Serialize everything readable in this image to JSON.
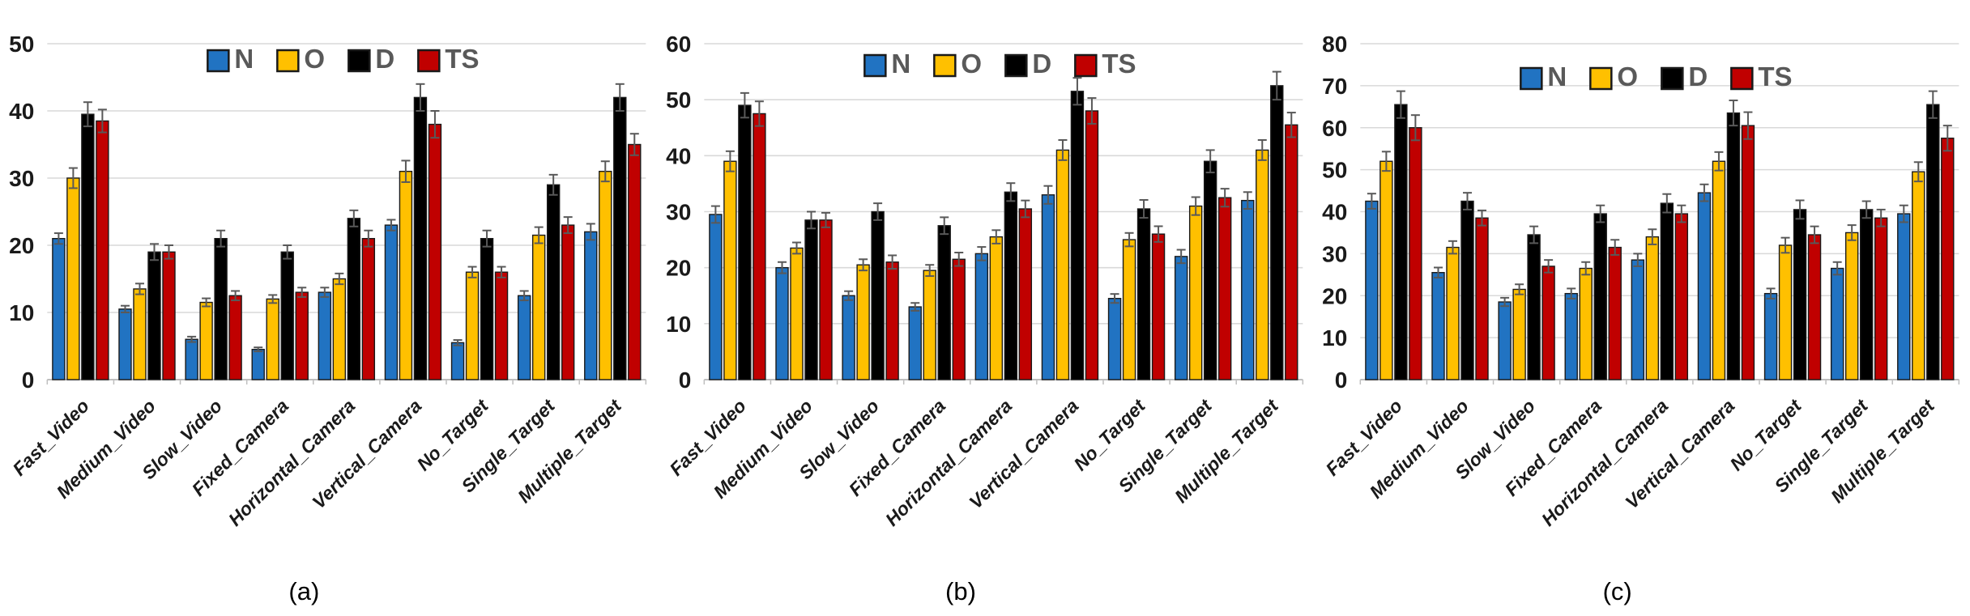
{
  "legend": {
    "labels": [
      "N",
      "O",
      "D",
      "TS"
    ]
  },
  "colors": {
    "N": "#2173C2",
    "O": "#FFC000",
    "D": "#000000",
    "TS": "#C00000",
    "grid": "#D9D9D9",
    "axis": "#BFBFBF",
    "error_bar": "#595959",
    "legend_text": "#595959",
    "tick_text": "#1A1A1A"
  },
  "chart_data": [
    {
      "id": "a",
      "type": "bar",
      "caption": "(a)",
      "ylim": [
        0,
        50
      ],
      "ytick_step": 10,
      "yticks": [
        0,
        10,
        20,
        30,
        40,
        50
      ],
      "grid": true,
      "legend_position": "top-center",
      "categories": [
        "Fast_Video",
        "Medium_Video",
        "Slow_Video",
        "Fixed_Camera",
        "Horizontal_Camera",
        "Vertical_Camera",
        "No_Target",
        "Single_Target",
        "Multiple_Target"
      ],
      "series": [
        {
          "name": "N",
          "color": "#2173C2",
          "values": [
            21,
            10.5,
            6,
            4.5,
            13,
            23,
            5.5,
            12.5,
            22
          ],
          "errors": [
            0.8,
            0.5,
            0.4,
            0.3,
            0.7,
            0.8,
            0.4,
            0.7,
            1.2
          ]
        },
        {
          "name": "O",
          "color": "#FFC000",
          "values": [
            30,
            13.5,
            11.5,
            12,
            15,
            31,
            16,
            21.5,
            31
          ],
          "errors": [
            1.5,
            0.8,
            0.6,
            0.6,
            0.8,
            1.6,
            0.8,
            1.2,
            1.5
          ]
        },
        {
          "name": "D",
          "color": "#000000",
          "values": [
            39.5,
            19,
            21,
            19,
            24,
            42,
            21,
            29,
            42
          ],
          "errors": [
            1.8,
            1.2,
            1.2,
            1.0,
            1.2,
            2.0,
            1.2,
            1.5,
            2.0
          ]
        },
        {
          "name": "TS",
          "color": "#C00000",
          "values": [
            38.5,
            19,
            12.5,
            13,
            21,
            38,
            16,
            23,
            35
          ],
          "errors": [
            1.7,
            1.0,
            0.7,
            0.7,
            1.2,
            2.0,
            0.8,
            1.2,
            1.6
          ]
        }
      ]
    },
    {
      "id": "b",
      "type": "bar",
      "caption": "(b)",
      "ylim": [
        0,
        60
      ],
      "ytick_step": 10,
      "yticks": [
        0,
        10,
        20,
        30,
        40,
        50,
        60
      ],
      "grid": true,
      "legend_position": "top-center",
      "categories": [
        "Fast_Video",
        "Medium_Video",
        "Slow_Video",
        "Fixed_Camera",
        "Horizontal_Camera",
        "Vertical_Camera",
        "No_Target",
        "Single_Target",
        "Multiple_Target"
      ],
      "series": [
        {
          "name": "N",
          "color": "#2173C2",
          "values": [
            29.5,
            20,
            15,
            13,
            22.5,
            33,
            14.5,
            22,
            32
          ],
          "errors": [
            1.5,
            1.0,
            0.8,
            0.7,
            1.2,
            1.6,
            0.8,
            1.2,
            1.5
          ]
        },
        {
          "name": "O",
          "color": "#FFC000",
          "values": [
            39,
            23.5,
            20.5,
            19.5,
            25.5,
            41,
            25,
            31,
            41
          ],
          "errors": [
            1.8,
            1.0,
            1.0,
            1.0,
            1.2,
            1.8,
            1.2,
            1.6,
            1.8
          ]
        },
        {
          "name": "D",
          "color": "#000000",
          "values": [
            49,
            28.5,
            30,
            27.5,
            33.5,
            51.5,
            30.5,
            39,
            52.5
          ],
          "errors": [
            2.2,
            1.5,
            1.5,
            1.5,
            1.6,
            2.4,
            1.6,
            2.0,
            2.5
          ]
        },
        {
          "name": "TS",
          "color": "#C00000",
          "values": [
            47.5,
            28.5,
            21,
            21.5,
            30.5,
            48,
            26,
            32.5,
            45.5
          ],
          "errors": [
            2.2,
            1.3,
            1.2,
            1.2,
            1.5,
            2.3,
            1.4,
            1.6,
            2.2
          ]
        }
      ]
    },
    {
      "id": "c",
      "type": "bar",
      "caption": "(c)",
      "ylim": [
        0,
        80
      ],
      "ytick_step": 10,
      "yticks": [
        0,
        10,
        20,
        30,
        40,
        50,
        60,
        70,
        80
      ],
      "grid": true,
      "legend_position": "top-center",
      "categories": [
        "Fast_Video",
        "Medium_Video",
        "Slow_Video",
        "Fixed_Camera",
        "Horizontal_Camera",
        "Vertical_Camera",
        "No_Target",
        "Single_Target",
        "Multiple_Target"
      ],
      "series": [
        {
          "name": "N",
          "color": "#2173C2",
          "values": [
            42.5,
            25.5,
            18.5,
            20.5,
            28.5,
            44.5,
            20.5,
            26.5,
            39.5
          ],
          "errors": [
            1.8,
            1.2,
            1.0,
            1.2,
            1.5,
            2.0,
            1.2,
            1.5,
            2.0
          ]
        },
        {
          "name": "O",
          "color": "#FFC000",
          "values": [
            52,
            31.5,
            21.5,
            26.5,
            34,
            52,
            32,
            35,
            49.5
          ],
          "errors": [
            2.3,
            1.5,
            1.2,
            1.5,
            1.8,
            2.2,
            1.8,
            1.8,
            2.3
          ]
        },
        {
          "name": "D",
          "color": "#000000",
          "values": [
            65.5,
            42.5,
            34.5,
            39.5,
            42,
            63.5,
            40.5,
            40.5,
            65.5
          ],
          "errors": [
            3.2,
            2.0,
            2.0,
            2.0,
            2.2,
            3.0,
            2.2,
            2.0,
            3.2
          ]
        },
        {
          "name": "TS",
          "color": "#C00000",
          "values": [
            60,
            38.5,
            27,
            31.5,
            39.5,
            60.5,
            34.5,
            38.5,
            57.5
          ],
          "errors": [
            3.0,
            1.8,
            1.5,
            1.8,
            2.0,
            3.2,
            2.0,
            2.0,
            3.0
          ]
        }
      ]
    }
  ]
}
